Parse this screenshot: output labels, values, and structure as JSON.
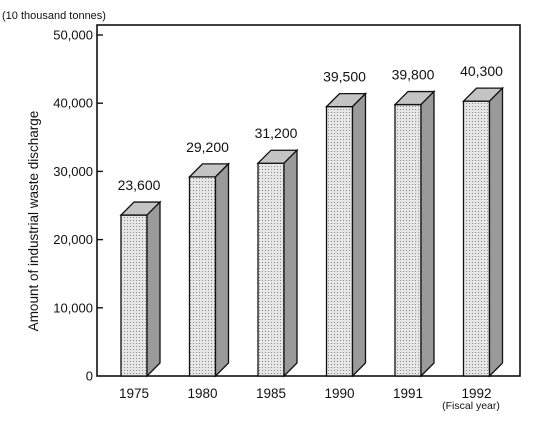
{
  "chart_data": {
    "type": "bar",
    "unit_label": "(10 thousand tonnes)",
    "ylabel": "Amount of industrial waste discharge",
    "xlabel": "(Fiscal year)",
    "categories": [
      "1975",
      "1980",
      "1985",
      "1990",
      "1991",
      "1992"
    ],
    "values": [
      23600,
      29200,
      31200,
      39500,
      39800,
      40300
    ],
    "value_labels": [
      "23,600",
      "29,200",
      "31,200",
      "39,500",
      "39,800",
      "40,300"
    ],
    "ylim": [
      0,
      50000
    ],
    "y_ticks": [
      0,
      10000,
      20000,
      30000,
      40000,
      50000
    ],
    "y_tick_labels": [
      "0",
      "10,000",
      "20,000",
      "30,000",
      "40,000",
      "50,000"
    ],
    "grid": false,
    "legend": "none",
    "style": "3d-bars",
    "colors": {
      "bar_front": "#dcdcdc",
      "bar_top": "#c4c4c4",
      "bar_side": "#9a9a9a",
      "ink": "#111111"
    }
  }
}
